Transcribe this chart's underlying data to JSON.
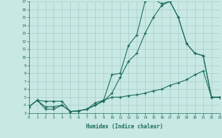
{
  "bg_color": "#c8e8e4",
  "grid_color": "#a8ccc8",
  "line_color": "#1a6b5a",
  "xlabel": "Humidex (Indice chaleur)",
  "xlim": [
    0,
    23
  ],
  "ylim": [
    3,
    17
  ],
  "xticks": [
    0,
    1,
    2,
    3,
    4,
    5,
    6,
    7,
    8,
    9,
    10,
    11,
    12,
    13,
    14,
    15,
    16,
    17,
    18,
    19,
    20,
    21,
    22,
    23
  ],
  "yticks": [
    3,
    4,
    5,
    6,
    7,
    8,
    9,
    10,
    11,
    12,
    13,
    14,
    15,
    16,
    17
  ],
  "line1_x": [
    0,
    1,
    2,
    3,
    4,
    5,
    6,
    7,
    8,
    9,
    10,
    11,
    12,
    13,
    14,
    15,
    16,
    17,
    18,
    19,
    20,
    21,
    22,
    23
  ],
  "line1_y": [
    3.8,
    4.6,
    4.5,
    4.5,
    4.5,
    3.2,
    3.3,
    3.5,
    4.3,
    4.6,
    7.8,
    8.0,
    11.5,
    12.8,
    17.0,
    17.3,
    16.7,
    17.0,
    15.0,
    11.7,
    10.5,
    10.2,
    5.0,
    5.0
  ],
  "line2_x": [
    0,
    1,
    2,
    3,
    4,
    5,
    6,
    7,
    8,
    9,
    10,
    11,
    12,
    13,
    14,
    15,
    16,
    17,
    18,
    19,
    20,
    21,
    22,
    23
  ],
  "line2_y": [
    3.8,
    4.6,
    3.5,
    3.5,
    4.0,
    3.2,
    3.3,
    3.5,
    4.0,
    4.5,
    5.5,
    7.5,
    9.5,
    10.5,
    13.0,
    15.0,
    16.5,
    17.0,
    15.0,
    11.7,
    10.5,
    10.2,
    5.0,
    5.0
  ],
  "line3_x": [
    0,
    1,
    2,
    3,
    4,
    5,
    6,
    7,
    8,
    9,
    10,
    11,
    12,
    13,
    14,
    15,
    16,
    17,
    18,
    19,
    20,
    21,
    22,
    23
  ],
  "line3_y": [
    3.8,
    4.6,
    3.8,
    3.8,
    4.0,
    3.2,
    3.3,
    3.5,
    4.0,
    4.6,
    5.0,
    5.0,
    5.2,
    5.3,
    5.5,
    5.8,
    6.0,
    6.5,
    6.8,
    7.2,
    7.8,
    8.3,
    5.0,
    5.0
  ]
}
